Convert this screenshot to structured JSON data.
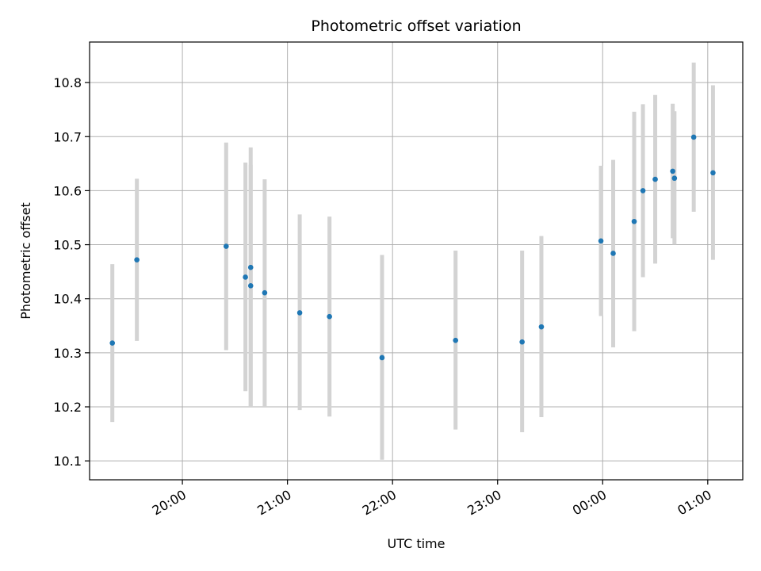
{
  "chart_data": {
    "type": "scatter",
    "title": "Photometric offset variation",
    "xlabel": "UTC time",
    "ylabel": "Photometric offset",
    "x_axis": "time",
    "xlim": [
      "19:07",
      "01:20"
    ],
    "ylim": [
      10.065,
      10.875
    ],
    "yticks": [
      10.1,
      10.2,
      10.3,
      10.4,
      10.5,
      10.6,
      10.7,
      10.8
    ],
    "xticks": [
      "20:00",
      "21:00",
      "22:00",
      "23:00",
      "00:00",
      "01:00"
    ],
    "xtick_rotation": 30,
    "grid": true,
    "marker_color": "#1f77b4",
    "errorbar_color": "#d3d3d3",
    "points": [
      {
        "time": "19:20",
        "y": 10.318,
        "lo": 10.172,
        "hi": 10.464
      },
      {
        "time": "19:34",
        "y": 10.472,
        "lo": 10.322,
        "hi": 10.622
      },
      {
        "time": "20:25",
        "y": 10.497,
        "lo": 10.305,
        "hi": 10.689
      },
      {
        "time": "20:36",
        "y": 10.44,
        "lo": 10.229,
        "hi": 10.652
      },
      {
        "time": "20:39",
        "y": 10.458,
        "lo": 10.2,
        "hi": 10.68
      },
      {
        "time": "20:39",
        "y": 10.424,
        "lo": 10.2,
        "hi": 10.648
      },
      {
        "time": "20:47",
        "y": 10.411,
        "lo": 10.2,
        "hi": 10.621
      },
      {
        "time": "21:07",
        "y": 10.374,
        "lo": 10.194,
        "hi": 10.556
      },
      {
        "time": "21:24",
        "y": 10.367,
        "lo": 10.182,
        "hi": 10.552
      },
      {
        "time": "21:54",
        "y": 10.291,
        "lo": 10.102,
        "hi": 10.481
      },
      {
        "time": "22:36",
        "y": 10.323,
        "lo": 10.158,
        "hi": 10.489
      },
      {
        "time": "23:14",
        "y": 10.32,
        "lo": 10.153,
        "hi": 10.489
      },
      {
        "time": "23:25",
        "y": 10.348,
        "lo": 10.181,
        "hi": 10.516
      },
      {
        "time": "23:59",
        "y": 10.507,
        "lo": 10.368,
        "hi": 10.646
      },
      {
        "time": "00:06",
        "y": 10.484,
        "lo": 10.31,
        "hi": 10.657
      },
      {
        "time": "00:18",
        "y": 10.543,
        "lo": 10.34,
        "hi": 10.746
      },
      {
        "time": "00:23",
        "y": 10.6,
        "lo": 10.44,
        "hi": 10.76
      },
      {
        "time": "00:30",
        "y": 10.621,
        "lo": 10.465,
        "hi": 10.777
      },
      {
        "time": "00:40",
        "y": 10.636,
        "lo": 10.512,
        "hi": 10.761
      },
      {
        "time": "00:41",
        "y": 10.623,
        "lo": 10.5,
        "hi": 10.747
      },
      {
        "time": "00:52",
        "y": 10.699,
        "lo": 10.561,
        "hi": 10.837
      },
      {
        "time": "01:03",
        "y": 10.633,
        "lo": 10.472,
        "hi": 10.795
      }
    ]
  }
}
